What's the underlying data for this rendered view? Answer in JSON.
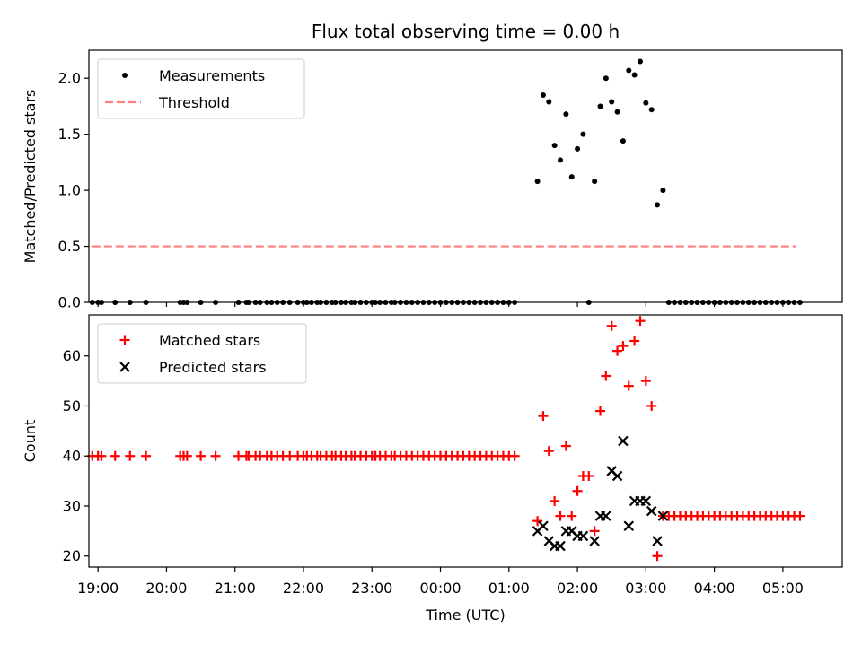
{
  "chart_data": [
    {
      "type": "scatter",
      "title": "Flux total observing time = 0.00 h",
      "xlabel": "",
      "ylabel": "Matched/Predicted stars",
      "xlim": [
        "18:52",
        "05:52"
      ],
      "ylim": [
        0,
        2.25
      ],
      "yticks": [
        0.0,
        0.5,
        1.0,
        1.5,
        2.0
      ],
      "ytick_labels": [
        "0.0",
        "0.5",
        "1.0",
        "1.5",
        "2.0"
      ],
      "legend": "top-left",
      "grid": false,
      "series": [
        {
          "name": "Measurements",
          "marker": "dot",
          "color": "#000000",
          "x": [
            "18:55",
            "19:00",
            "19:03",
            "19:15",
            "19:28",
            "19:42",
            "20:12",
            "20:15",
            "20:18",
            "20:30",
            "20:43",
            "21:03",
            "21:10",
            "21:12",
            "21:18",
            "21:22",
            "21:28",
            "21:32",
            "21:37",
            "21:42",
            "21:48",
            "21:55",
            "22:00",
            "22:03",
            "22:07",
            "22:12",
            "22:15",
            "22:20",
            "22:25",
            "22:28",
            "22:33",
            "22:37",
            "22:42",
            "22:45",
            "22:50",
            "22:55",
            "23:00",
            "23:03",
            "23:07",
            "23:12",
            "23:17",
            "23:20",
            "23:25",
            "23:30",
            "23:35",
            "23:40",
            "23:45",
            "23:50",
            "23:55",
            "00:00",
            "00:05",
            "00:10",
            "00:15",
            "00:20",
            "00:25",
            "00:30",
            "00:35",
            "00:40",
            "00:45",
            "00:50",
            "00:55",
            "01:00",
            "01:05",
            "01:25",
            "01:30",
            "01:35",
            "01:40",
            "01:45",
            "01:50",
            "01:55",
            "02:00",
            "02:05",
            "02:10",
            "02:15",
            "02:20",
            "02:25",
            "02:30",
            "02:35",
            "02:40",
            "02:45",
            "02:50",
            "02:55",
            "03:00",
            "03:05",
            "03:10",
            "03:15",
            "03:20",
            "03:25",
            "03:30",
            "03:35",
            "03:40",
            "03:45",
            "03:50",
            "03:55",
            "04:00",
            "04:05",
            "04:10",
            "04:15",
            "04:20",
            "04:25",
            "04:30",
            "04:35",
            "04:40",
            "04:45",
            "04:50",
            "04:55",
            "05:00",
            "05:05",
            "05:10",
            "05:15"
          ],
          "y": [
            0,
            0,
            0,
            0,
            0,
            0,
            0,
            0,
            0,
            0,
            0,
            0,
            0,
            0,
            0,
            0,
            0,
            0,
            0,
            0,
            0,
            0,
            0,
            0,
            0,
            0,
            0,
            0,
            0,
            0,
            0,
            0,
            0,
            0,
            0,
            0,
            0,
            0,
            0,
            0,
            0,
            0,
            0,
            0,
            0,
            0,
            0,
            0,
            0,
            0,
            0,
            0,
            0,
            0,
            0,
            0,
            0,
            0,
            0,
            0,
            0,
            0,
            0,
            1.08,
            1.85,
            1.79,
            1.4,
            1.27,
            1.68,
            1.12,
            1.37,
            1.5,
            0,
            1.08,
            1.75,
            2.0,
            1.79,
            1.7,
            1.44,
            2.07,
            2.03,
            2.15,
            1.78,
            1.72,
            0.87,
            1.0,
            0,
            0,
            0,
            0,
            0,
            0,
            0,
            0,
            0,
            0,
            0,
            0,
            0,
            0,
            0,
            0,
            0,
            0,
            0,
            0,
            0,
            0,
            0,
            0
          ]
        },
        {
          "name": "Threshold",
          "line": "dashed",
          "color": "#ff7f7f",
          "x": [
            "18:55",
            "05:12"
          ],
          "y": [
            0.5,
            0.5
          ]
        }
      ]
    },
    {
      "type": "scatter",
      "xlabel": "Time (UTC)",
      "ylabel": "Count",
      "xlim": [
        "18:52",
        "05:52"
      ],
      "ylim": [
        17.8,
        68.2
      ],
      "yticks": [
        20,
        30,
        40,
        50,
        60
      ],
      "ytick_labels": [
        "20",
        "30",
        "40",
        "50",
        "60"
      ],
      "xticks": [
        "19:00",
        "20:00",
        "21:00",
        "22:00",
        "23:00",
        "00:00",
        "01:00",
        "02:00",
        "03:00",
        "04:00",
        "05:00"
      ],
      "legend": "top-left",
      "grid": false,
      "series": [
        {
          "name": "Matched stars",
          "marker": "plus",
          "color": "#ff0000",
          "x": [
            "18:55",
            "19:00",
            "19:03",
            "19:15",
            "19:28",
            "19:42",
            "20:12",
            "20:15",
            "20:18",
            "20:30",
            "20:43",
            "21:03",
            "21:10",
            "21:12",
            "21:18",
            "21:22",
            "21:28",
            "21:32",
            "21:37",
            "21:42",
            "21:48",
            "21:55",
            "22:00",
            "22:03",
            "22:07",
            "22:12",
            "22:15",
            "22:20",
            "22:25",
            "22:28",
            "22:33",
            "22:37",
            "22:42",
            "22:45",
            "22:50",
            "22:55",
            "23:00",
            "23:03",
            "23:07",
            "23:12",
            "23:17",
            "23:20",
            "23:25",
            "23:30",
            "23:35",
            "23:40",
            "23:45",
            "23:50",
            "23:55",
            "00:00",
            "00:05",
            "00:10",
            "00:15",
            "00:20",
            "00:25",
            "00:30",
            "00:35",
            "00:40",
            "00:45",
            "00:50",
            "00:55",
            "01:00",
            "01:05",
            "01:25",
            "01:30",
            "01:35",
            "01:40",
            "01:45",
            "01:50",
            "01:55",
            "02:00",
            "02:05",
            "02:10",
            "02:15",
            "02:20",
            "02:25",
            "02:30",
            "02:35",
            "02:40",
            "02:45",
            "02:50",
            "02:55",
            "03:00",
            "03:05",
            "03:10",
            "03:15",
            "03:20",
            "03:25",
            "03:30",
            "03:35",
            "03:40",
            "03:45",
            "03:50",
            "03:55",
            "04:00",
            "04:05",
            "04:10",
            "04:15",
            "04:20",
            "04:25",
            "04:30",
            "04:35",
            "04:40",
            "04:45",
            "04:50",
            "04:55",
            "05:00",
            "05:05",
            "05:10",
            "05:15"
          ],
          "y": [
            40,
            40,
            40,
            40,
            40,
            40,
            40,
            40,
            40,
            40,
            40,
            40,
            40,
            40,
            40,
            40,
            40,
            40,
            40,
            40,
            40,
            40,
            40,
            40,
            40,
            40,
            40,
            40,
            40,
            40,
            40,
            40,
            40,
            40,
            40,
            40,
            40,
            40,
            40,
            40,
            40,
            40,
            40,
            40,
            40,
            40,
            40,
            40,
            40,
            40,
            40,
            40,
            40,
            40,
            40,
            40,
            40,
            40,
            40,
            40,
            40,
            40,
            40,
            27,
            48,
            41,
            31,
            28,
            42,
            28,
            33,
            36,
            36,
            25,
            49,
            56,
            66,
            61,
            62,
            54,
            63,
            67,
            55,
            50,
            20,
            28,
            28,
            28,
            28,
            28,
            28,
            28,
            28,
            28,
            28,
            28,
            28,
            28,
            28,
            28,
            28,
            28,
            28,
            28,
            28,
            28,
            28,
            28,
            28,
            28
          ]
        },
        {
          "name": "Predicted stars",
          "marker": "x",
          "color": "#000000",
          "x": [
            "01:25",
            "01:30",
            "01:35",
            "01:40",
            "01:45",
            "01:50",
            "01:55",
            "02:00",
            "02:05",
            "02:15",
            "02:20",
            "02:25",
            "02:30",
            "02:35",
            "02:40",
            "02:45",
            "02:50",
            "02:55",
            "03:00",
            "03:05",
            "03:10",
            "03:15"
          ],
          "y": [
            25,
            26,
            23,
            22,
            22,
            25,
            25,
            24,
            24,
            23,
            28,
            28,
            37,
            36,
            43,
            26,
            31,
            31,
            31,
            29,
            23,
            28
          ]
        }
      ]
    }
  ]
}
